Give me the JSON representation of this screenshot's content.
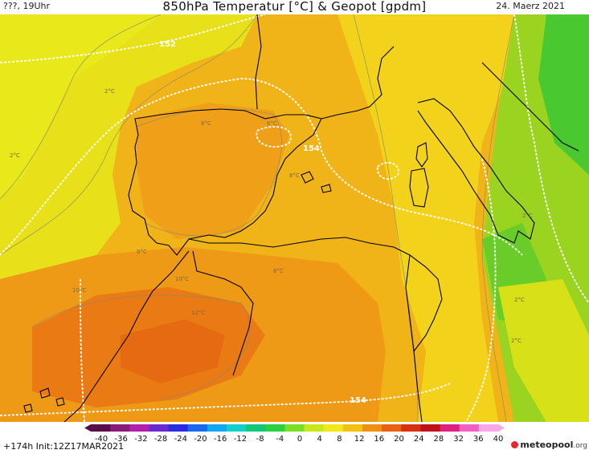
{
  "header": {
    "left_text": "???, 19Uhr",
    "title": "850hPa Temperatur [°C] & Geopot [gpdm]",
    "date": "24. Maerz 2021"
  },
  "map": {
    "geopotential_labels": [
      "152",
      "154",
      "154"
    ],
    "temperature_labels": [
      "2°C",
      "2°C",
      "8°C",
      "8°C",
      "8°C",
      "8°C",
      "8°C",
      "10°C",
      "10°C",
      "12°C",
      "2°C",
      "2°C",
      "2°C"
    ]
  },
  "colorbar": {
    "ticks": [
      "-40",
      "-36",
      "-32",
      "-28",
      "-24",
      "-20",
      "-16",
      "-12",
      "-8",
      "-4",
      "0",
      "4",
      "8",
      "12",
      "16",
      "20",
      "24",
      "28",
      "32",
      "36",
      "40"
    ],
    "colors": [
      "#5a0a48",
      "#8a1a78",
      "#b020a8",
      "#6a2ad0",
      "#2a2ae0",
      "#1a6af0",
      "#12a8f0",
      "#10d0c8",
      "#10c878",
      "#2ad040",
      "#78e020",
      "#c8e818",
      "#f0e818",
      "#f5c010",
      "#f09010",
      "#e86010",
      "#d83010",
      "#c01018",
      "#e02080",
      "#f060c0",
      "#f8a8e8"
    ]
  },
  "footer": {
    "run_info": "+174h Init:12Z17MAR2021",
    "brand_name": "meteopool",
    "brand_tld": ".org"
  }
}
